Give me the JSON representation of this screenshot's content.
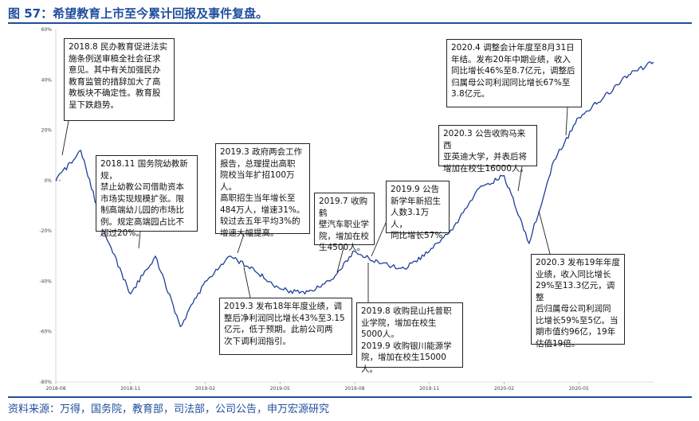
{
  "title": "图 57：希望教育上市至今累计回报及事件复盘。",
  "source": "资料来源：万得，国务院，教育部，司法部，公司公告，申万宏源研究",
  "chart_data": {
    "type": "line",
    "ylim": [
      -80,
      60
    ],
    "yticks": [
      -80,
      -60,
      -40,
      -20,
      0,
      20,
      40,
      60
    ],
    "ytick_labels": [
      "-80%",
      "-60%",
      "-40%",
      "-20%",
      "0%",
      "20%",
      "40%",
      "60%"
    ],
    "x_range": [
      "2018-08",
      "2020-08"
    ],
    "xticks": [
      "2018-08",
      "2018-11",
      "2019-02",
      "2019-05",
      "2019-08",
      "2019-11",
      "2020-02",
      "2020-05"
    ],
    "series": [
      {
        "x": [
          "2018-08",
          "2018-09",
          "2018-10",
          "2018-11",
          "2018-12",
          "2019-01",
          "2019-02",
          "2019-03",
          "2019-04",
          "2019-05",
          "2019-06",
          "2019-07",
          "2019-08",
          "2019-09",
          "2019-10",
          "2019-11",
          "2019-12",
          "2020-01",
          "2020-02",
          "2020-03",
          "2020-04",
          "2020-05",
          "2020-06",
          "2020-07",
          "2020-08"
        ],
        "values": [
          0,
          12,
          -22,
          -45,
          -30,
          -58,
          -40,
          -30,
          -36,
          -43,
          -45,
          -40,
          -28,
          -33,
          -35,
          -28,
          -18,
          -3,
          2,
          -25,
          8,
          25,
          33,
          42,
          47
        ]
      }
    ],
    "annotations": [
      {
        "text": "2018.8 民办教育促进法实\n施条例送审稿全社会征求\n意见。其中有关加强民办\n教育监管的措辞加大了高\n教板块不确定性。教育股\n呈下跌趋势。"
      },
      {
        "text": "2018.11 国务院幼教新规，\n禁止幼教公司借助资本\n市场实现规模扩张。限\n制高端幼儿园的市场比\n例。规定高端园占比不\n超过20%。"
      },
      {
        "text": "2019.3 政府两会工作\n报告，总理提出高职\n院校当年扩招100万人。\n高职招生当年增长至\n484万人，增速31%。\n较过去五年平均3%的\n增速大幅提高。"
      },
      {
        "text": "2019.3 发布18年年度业绩，调\n整后净利润同比增长43%至3.15\n亿元，低于预期。此前公司两\n次下调利润指引。"
      },
      {
        "text": "2019.7 收购鹤\n壁汽车职业学\n院，增加在校\n生4500人。"
      },
      {
        "text": "2019.9 公告\n新学年新招生\n人数3.1万人，\n同比增长57%"
      },
      {
        "text": "2019.8 收购昆山托普职\n业学院，增加在校生\n5000人。\n2019.9 收购银川能源学\n院，增加在校生15000人。"
      },
      {
        "text": "2020.3 公告收购马来西\n亚英迪大学，并表后将\n增加在校生16000人。"
      },
      {
        "text": "2020.4 调整会计年度至8月31日\n年结。发布20年中期业绩，收入\n同比增长46%至8.7亿元，调整后\n归属母公司利润同比增长67%至\n3.8亿元。"
      },
      {
        "text": "2020.3 发布19年年度\n业绩，收入同比增长\n29%至13.3亿元，调整\n后归属母公司利润同\n比增长59%至5亿。当\n期市值约96亿，19年\n估值19倍。"
      }
    ],
    "line_color": "#1f3f99"
  }
}
